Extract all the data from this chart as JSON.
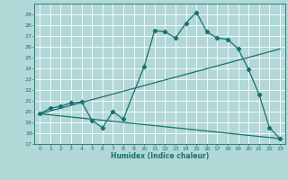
{
  "title": "",
  "xlabel": "Humidex (Indice chaleur)",
  "bg_color": "#b2d8d8",
  "line_color": "#1a7070",
  "grid_color": "#ffffff",
  "xlim": [
    -0.5,
    23.5
  ],
  "ylim": [
    17,
    30
  ],
  "yticks": [
    17,
    18,
    19,
    20,
    21,
    22,
    23,
    24,
    25,
    26,
    27,
    28,
    29
  ],
  "xticks": [
    0,
    1,
    2,
    3,
    4,
    5,
    6,
    7,
    8,
    9,
    10,
    11,
    12,
    13,
    14,
    15,
    16,
    17,
    18,
    19,
    20,
    21,
    22,
    23
  ],
  "line1_x": [
    0,
    1,
    2,
    3,
    4,
    5,
    6,
    7,
    8,
    10,
    11,
    12,
    13,
    14,
    15,
    16,
    17,
    18,
    19,
    20,
    21,
    22,
    23
  ],
  "line1_y": [
    19.8,
    20.3,
    20.5,
    20.8,
    20.9,
    19.2,
    18.5,
    20.0,
    19.3,
    24.2,
    27.5,
    27.4,
    26.8,
    28.2,
    29.2,
    27.4,
    26.8,
    26.7,
    25.8,
    23.9,
    21.6,
    18.5,
    17.5
  ],
  "line2_x": [
    0,
    23
  ],
  "line2_y": [
    19.8,
    25.8
  ],
  "line3_x": [
    0,
    23
  ],
  "line3_y": [
    19.8,
    17.5
  ],
  "marker": "D",
  "markersize": 2.2,
  "linewidth": 0.9
}
